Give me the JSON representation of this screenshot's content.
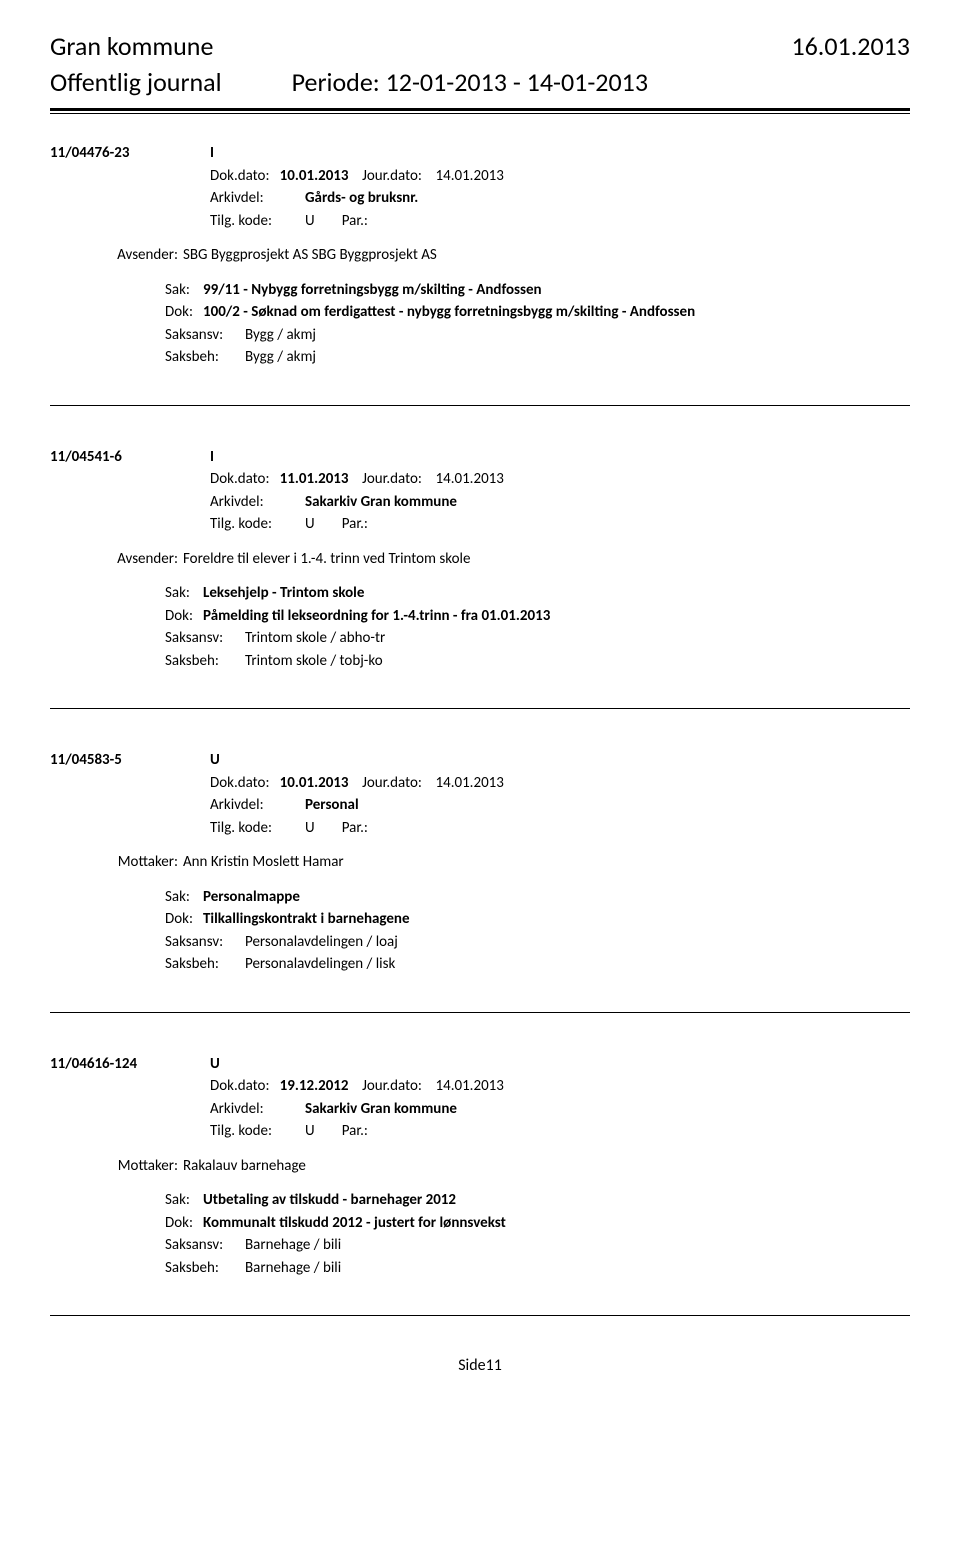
{
  "header": {
    "org": "Gran kommune",
    "date": "16.01.2013",
    "subtitle": "Offentlig journal",
    "period_label": "Periode: 12-01-2013 - 14-01-2013"
  },
  "labels": {
    "dokdato": "Dok.dato:",
    "jourdato": "Jour.dato:",
    "arkivdel": "Arkivdel:",
    "tilgkode": "Tilg. kode:",
    "par": "Par.:",
    "avsender": "Avsender:",
    "mottaker": "Mottaker:",
    "sak": "Sak:",
    "dok": "Dok:",
    "saksansv": "Saksansv:",
    "saksbeh": "Saksbeh:"
  },
  "entries": [
    {
      "id": "11/04476-23",
      "type": "I",
      "dokdato": "10.01.2013",
      "jourdato": "14.01.2013",
      "arkivdel": "Gårds- og bruksnr.",
      "tilgkode": "U",
      "party_label": "Avsender:",
      "party_value": "SBG Byggprosjekt AS SBG Byggprosjekt AS",
      "sak": "99/11 - Nybygg forretningsbygg m/skilting - Andfossen",
      "dok": "100/2 - Søknad om ferdigattest - nybygg forretningsbygg m/skilting - Andfossen",
      "saksansv": "Bygg / akmj",
      "saksbeh": "Bygg / akmj"
    },
    {
      "id": "11/04541-6",
      "type": "I",
      "dokdato": "11.01.2013",
      "jourdato": "14.01.2013",
      "arkivdel": "Sakarkiv Gran kommune",
      "tilgkode": "U",
      "party_label": "Avsender:",
      "party_value": "Foreldre til elever i 1.-4. trinn ved Trintom skole",
      "sak": "Leksehjelp - Trintom skole",
      "dok": "Påmelding til lekseordning for 1.-4.trinn - fra 01.01.2013",
      "saksansv": "Trintom skole / abho-tr",
      "saksbeh": "Trintom skole / tobj-ko"
    },
    {
      "id": "11/04583-5",
      "type": "U",
      "dokdato": "10.01.2013",
      "jourdato": "14.01.2013",
      "arkivdel": "Personal",
      "tilgkode": "U",
      "party_label": "Mottaker:",
      "party_value": "Ann Kristin Moslett Hamar",
      "sak": "Personalmappe",
      "dok": "Tilkallingskontrakt i barnehagene",
      "saksansv": "Personalavdelingen / loaj",
      "saksbeh": "Personalavdelingen / lisk"
    },
    {
      "id": "11/04616-124",
      "type": "U",
      "dokdato": "19.12.2012",
      "jourdato": "14.01.2013",
      "arkivdel": "Sakarkiv Gran kommune",
      "tilgkode": "U",
      "party_label": "Mottaker:",
      "party_value": "Rakalauv barnehage",
      "sak": "Utbetaling av tilskudd - barnehager 2012",
      "dok": "Kommunalt tilskudd 2012 - justert for lønnsvekst",
      "saksansv": "Barnehage / bili",
      "saksbeh": "Barnehage / bili"
    }
  ],
  "footer": "Side11"
}
